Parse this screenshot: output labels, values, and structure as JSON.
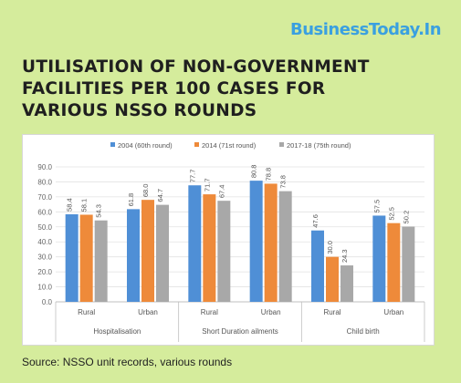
{
  "brand": "BusinessToday.In",
  "title_lines": [
    "UTILISATION OF NON-GOVERNMENT",
    "FACILITIES PER 100 CASES FOR",
    "VARIOUS NSSO ROUNDS"
  ],
  "source": "Source: NSSO unit records, various rounds",
  "colors": {
    "background": "#d5ec9c",
    "brand": "#3aa0e0",
    "series": [
      "#4f8fd6",
      "#ee8a3a",
      "#a8a8a8"
    ]
  },
  "chart_data": {
    "type": "bar",
    "ylim": [
      0,
      90
    ],
    "yticks": [
      "0.0",
      "10.0",
      "20.0",
      "30.0",
      "40.0",
      "50.0",
      "60.0",
      "70.0",
      "80.0",
      "90.0"
    ],
    "grid": true,
    "legend_position": "top",
    "categories": [
      "Rural",
      "Urban",
      "Rural",
      "Urban",
      "Rural",
      "Urban"
    ],
    "groups": [
      {
        "label": "Hospitalisation",
        "categories": [
          "Rural",
          "Urban"
        ]
      },
      {
        "label": "Short Duration ailments",
        "categories": [
          "Rural",
          "Urban"
        ]
      },
      {
        "label": "Child birth",
        "categories": [
          "Rural",
          "Urban"
        ]
      }
    ],
    "series": [
      {
        "name": "2004 (60th round)",
        "values": [
          58.4,
          61.8,
          77.7,
          80.8,
          47.6,
          57.5
        ],
        "labels": [
          "58.4",
          "61.8",
          "77.7",
          "80.8",
          "47.6",
          "57.5"
        ]
      },
      {
        "name": "2014 (71st round)",
        "values": [
          58.1,
          68.0,
          71.7,
          78.8,
          30.0,
          52.5
        ],
        "labels": [
          "58.1",
          "68.0",
          "71.7",
          "78.8",
          "30.0",
          "52.5"
        ]
      },
      {
        "name": "2017-18 (75th round)",
        "values": [
          54.3,
          64.7,
          67.4,
          73.8,
          24.3,
          50.2
        ],
        "labels": [
          "54.3",
          "64.7",
          "67.4",
          "73.8",
          "24.3",
          "50.2"
        ]
      }
    ]
  }
}
